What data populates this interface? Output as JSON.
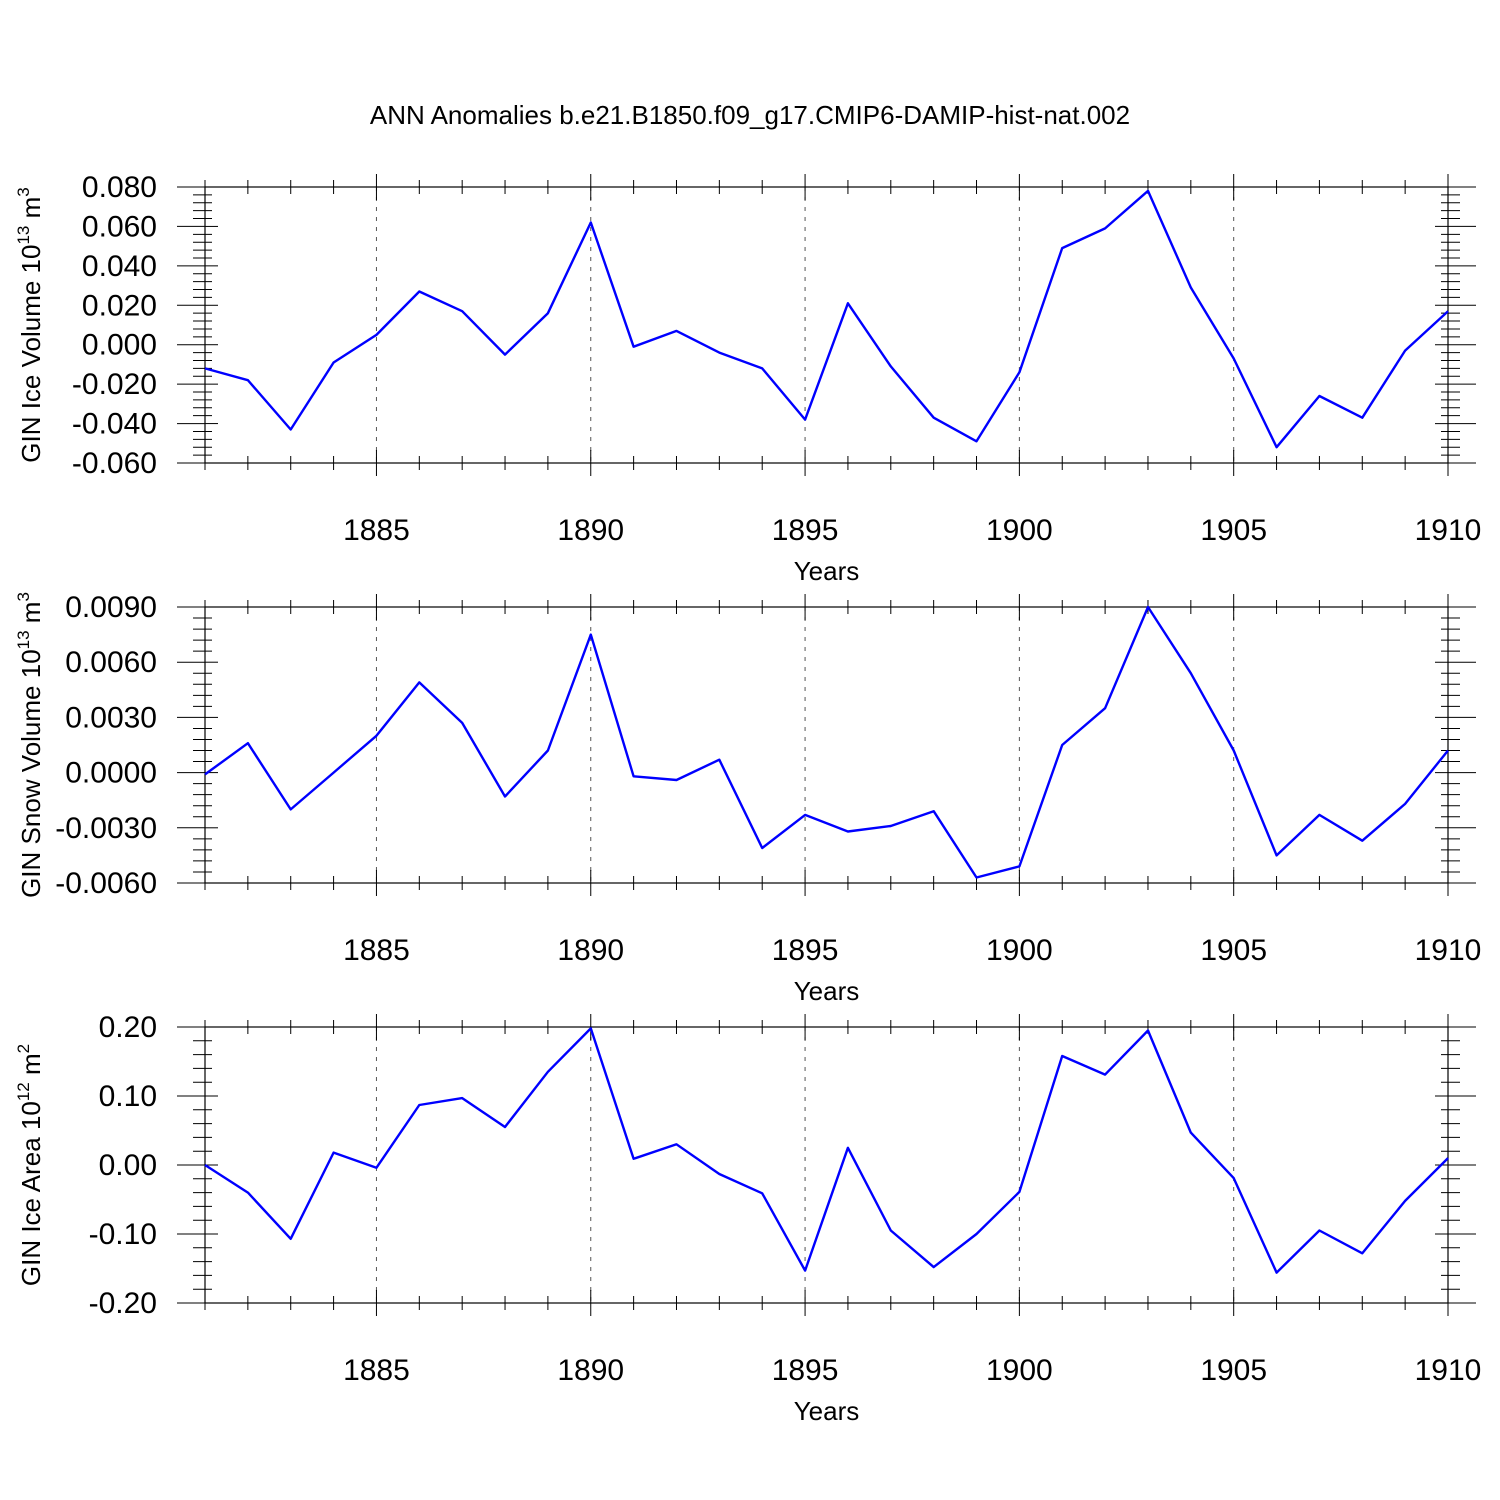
{
  "chart_data": [
    {
      "type": "line",
      "title": "ANN Anomalies b.e21.B1850.f09_g17.CMIP6-DAMIP-hist-nat.002",
      "ylabel": "GIN Ice Volume 10",
      "ylabel_exp": "13",
      "ylabel_unit": "m",
      "ylabel_unit_exp": "3",
      "xlabel": "Years",
      "xlim": [
        1881,
        1910
      ],
      "ylim": [
        -0.06,
        0.08
      ],
      "xticks": [
        1885,
        1890,
        1895,
        1900,
        1905,
        1910
      ],
      "yticks": [
        -0.06,
        -0.04,
        -0.02,
        0.0,
        0.02,
        0.04,
        0.06,
        0.08
      ],
      "ytick_labels": [
        "-0.060",
        "-0.040",
        "-0.020",
        "0.000",
        "0.020",
        "0.040",
        "0.060",
        "0.080"
      ],
      "grid": "vertical dashed at major x ticks",
      "series": [
        {
          "name": "GIN Ice Volume",
          "color": "#0000ff",
          "x": [
            1881,
            1882,
            1883,
            1884,
            1885,
            1886,
            1887,
            1888,
            1889,
            1890,
            1891,
            1892,
            1893,
            1894,
            1895,
            1896,
            1897,
            1898,
            1899,
            1900,
            1901,
            1902,
            1903,
            1904,
            1905,
            1906,
            1907,
            1908,
            1909,
            1910
          ],
          "values": [
            -0.012,
            -0.018,
            -0.043,
            -0.009,
            0.005,
            0.027,
            0.017,
            -0.005,
            0.016,
            0.062,
            -0.001,
            0.007,
            -0.004,
            -0.012,
            -0.038,
            0.021,
            -0.011,
            -0.037,
            -0.049,
            -0.014,
            0.049,
            0.059,
            0.078,
            0.029,
            -0.007,
            -0.052,
            -0.026,
            -0.037,
            -0.003,
            0.017
          ]
        }
      ]
    },
    {
      "type": "line",
      "title": "",
      "ylabel": "GIN Snow Volume 10",
      "ylabel_exp": "13",
      "ylabel_unit": "m",
      "ylabel_unit_exp": "3",
      "xlabel": "Years",
      "xlim": [
        1881,
        1910
      ],
      "ylim": [
        -0.006,
        0.009
      ],
      "xticks": [
        1885,
        1890,
        1895,
        1900,
        1905,
        1910
      ],
      "yticks": [
        -0.006,
        -0.003,
        0.0,
        0.003,
        0.006,
        0.009
      ],
      "ytick_labels": [
        "-0.0060",
        "-0.0030",
        "0.0000",
        "0.0030",
        "0.0060",
        "0.0090"
      ],
      "grid": "vertical dashed at major x ticks",
      "series": [
        {
          "name": "GIN Snow Volume",
          "color": "#0000ff",
          "x": [
            1881,
            1882,
            1883,
            1884,
            1885,
            1886,
            1887,
            1888,
            1889,
            1890,
            1891,
            1892,
            1893,
            1894,
            1895,
            1896,
            1897,
            1898,
            1899,
            1900,
            1901,
            1902,
            1903,
            1904,
            1905,
            1906,
            1907,
            1908,
            1909,
            1910
          ],
          "values": [
            -0.0001,
            0.0016,
            -0.002,
            0.0,
            0.002,
            0.0049,
            0.0027,
            -0.0013,
            0.0012,
            0.0075,
            -0.0002,
            -0.0004,
            0.0007,
            -0.0041,
            -0.0023,
            -0.0032,
            -0.0029,
            -0.0021,
            -0.0057,
            -0.0051,
            0.0015,
            0.0035,
            0.009,
            0.0054,
            0.0012,
            -0.0045,
            -0.0023,
            -0.0037,
            -0.0017,
            0.0012
          ]
        }
      ]
    },
    {
      "type": "line",
      "title": "",
      "ylabel": "GIN Ice Area 10",
      "ylabel_exp": "12",
      "ylabel_unit": "m",
      "ylabel_unit_exp": "2",
      "xlabel": "Years",
      "xlim": [
        1881,
        1910
      ],
      "ylim": [
        -0.2,
        0.2
      ],
      "xticks": [
        1885,
        1890,
        1895,
        1900,
        1905,
        1910
      ],
      "yticks": [
        -0.2,
        -0.1,
        0.0,
        0.1,
        0.2
      ],
      "ytick_labels": [
        "-0.20",
        "-0.10",
        "0.00",
        "0.10",
        "0.20"
      ],
      "grid": "vertical dashed at major x ticks",
      "series": [
        {
          "name": "GIN Ice Area",
          "color": "#0000ff",
          "x": [
            1881,
            1882,
            1883,
            1884,
            1885,
            1886,
            1887,
            1888,
            1889,
            1890,
            1891,
            1892,
            1893,
            1894,
            1895,
            1896,
            1897,
            1898,
            1899,
            1900,
            1901,
            1902,
            1903,
            1904,
            1905,
            1906,
            1907,
            1908,
            1909,
            1910
          ],
          "values": [
            0.0,
            -0.04,
            -0.107,
            0.018,
            -0.004,
            0.087,
            0.097,
            0.055,
            0.135,
            0.198,
            0.009,
            0.03,
            -0.013,
            -0.041,
            -0.153,
            0.025,
            -0.095,
            -0.148,
            -0.1,
            -0.039,
            0.158,
            0.131,
            0.195,
            0.047,
            -0.019,
            -0.156,
            -0.095,
            -0.128,
            -0.052,
            0.01
          ]
        }
      ]
    }
  ]
}
